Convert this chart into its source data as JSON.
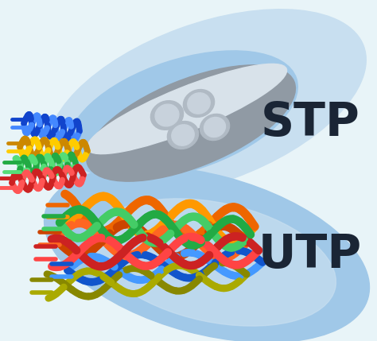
{
  "background_color": "#e8f4f8",
  "fig_width": 4.74,
  "fig_height": 4.29,
  "dpi": 100,
  "stp_label": "STP",
  "utp_label": "UTP",
  "label_color": "#1a2535",
  "label_fontsize": 42,
  "label_fontweight": "bold",
  "blob_light": "#c8dff0",
  "blob_mid": "#a0c8e8",
  "blob_dark": "#6aaad4",
  "shield_outer": "#909aa4",
  "shield_mid": "#b0bac4",
  "shield_inner": "#c8d2dc",
  "shield_highlight": "#d8e2ea",
  "stp_wire_colors": [
    [
      "#1144cc",
      "#4488ff"
    ],
    [
      "#22aa44",
      "#55dd77"
    ],
    [
      "#cc8800",
      "#ffcc00"
    ],
    [
      "#cc2222",
      "#ff5555"
    ]
  ],
  "utp_wire_colors": [
    [
      "#ee6600",
      "#ff9900"
    ],
    [
      "#cc4400",
      "#ff6622"
    ],
    [
      "#22aa44",
      "#44cc66"
    ],
    [
      "#cc2222",
      "#ff4444"
    ],
    [
      "#1155cc",
      "#4499ff"
    ],
    [
      "#888800",
      "#aaaa00"
    ]
  ]
}
